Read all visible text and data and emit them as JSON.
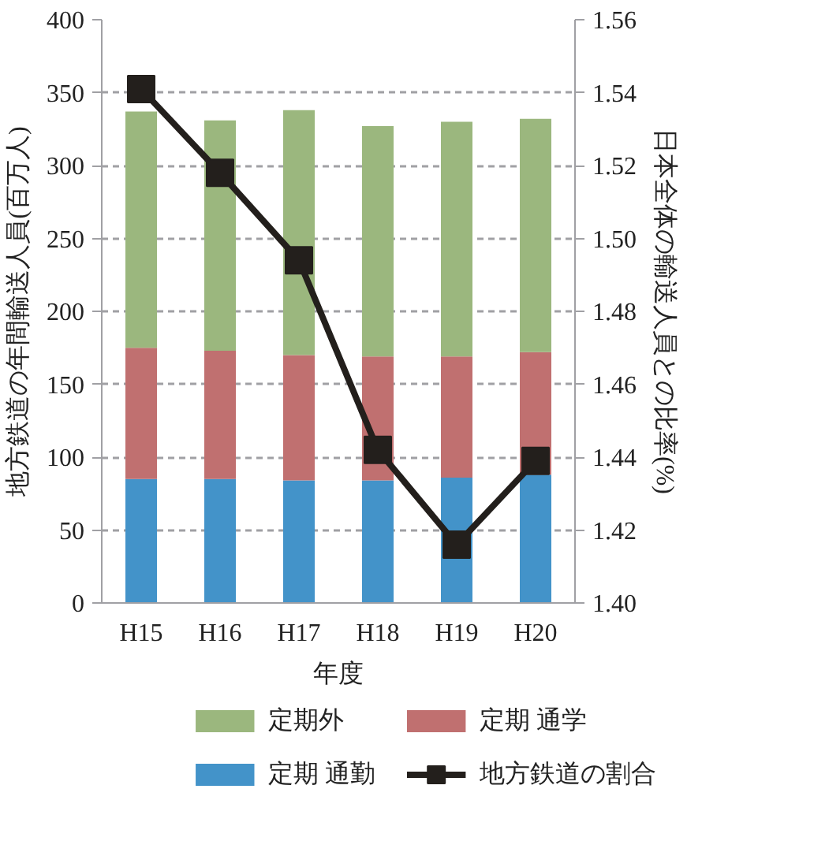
{
  "chart_data": {
    "type": "bar",
    "stacked": true,
    "xlabel": "年度",
    "ylabel": "地方鉄道の年間輸送人員(百万人)",
    "y2label": "日本全体の輸送人員との比率(%)",
    "categories": [
      "H15",
      "H16",
      "H17",
      "H18",
      "H19",
      "H20"
    ],
    "series": [
      {
        "name": "定期 通勤",
        "color": "#4393c9",
        "values": [
          85,
          85,
          84,
          84,
          86,
          88
        ]
      },
      {
        "name": "定期 通学",
        "color": "#c07070",
        "values": [
          90,
          88,
          86,
          85,
          83,
          84
        ]
      },
      {
        "name": "定期外",
        "color": "#9bb77e",
        "values": [
          162,
          158,
          168,
          158,
          161,
          160
        ]
      },
      {
        "name": "地方鉄道の割合",
        "type": "line",
        "axis": "y2",
        "color": "#231f1c",
        "marker": "square",
        "values": [
          1.541,
          1.518,
          1.494,
          1.442,
          1.416,
          1.439
        ]
      }
    ],
    "ylim": [
      0,
      400
    ],
    "yticks": [
      0,
      50,
      100,
      150,
      200,
      250,
      300,
      350,
      400
    ],
    "y2lim": [
      1.4,
      1.56
    ],
    "y2ticks": [
      {
        "value": 1.4,
        "label": "1.40"
      },
      {
        "value": 1.42,
        "label": "1.42"
      },
      {
        "value": 1.44,
        "label": "1.44"
      },
      {
        "value": 1.46,
        "label": "1.46"
      },
      {
        "value": 1.48,
        "label": "1.48"
      },
      {
        "value": 1.5,
        "label": "1.50"
      },
      {
        "value": 1.52,
        "label": "1.52"
      },
      {
        "value": 1.54,
        "label": "1.54"
      },
      {
        "value": 1.56,
        "label": "1.56"
      }
    ],
    "grid": "y",
    "legend": "bottom"
  }
}
